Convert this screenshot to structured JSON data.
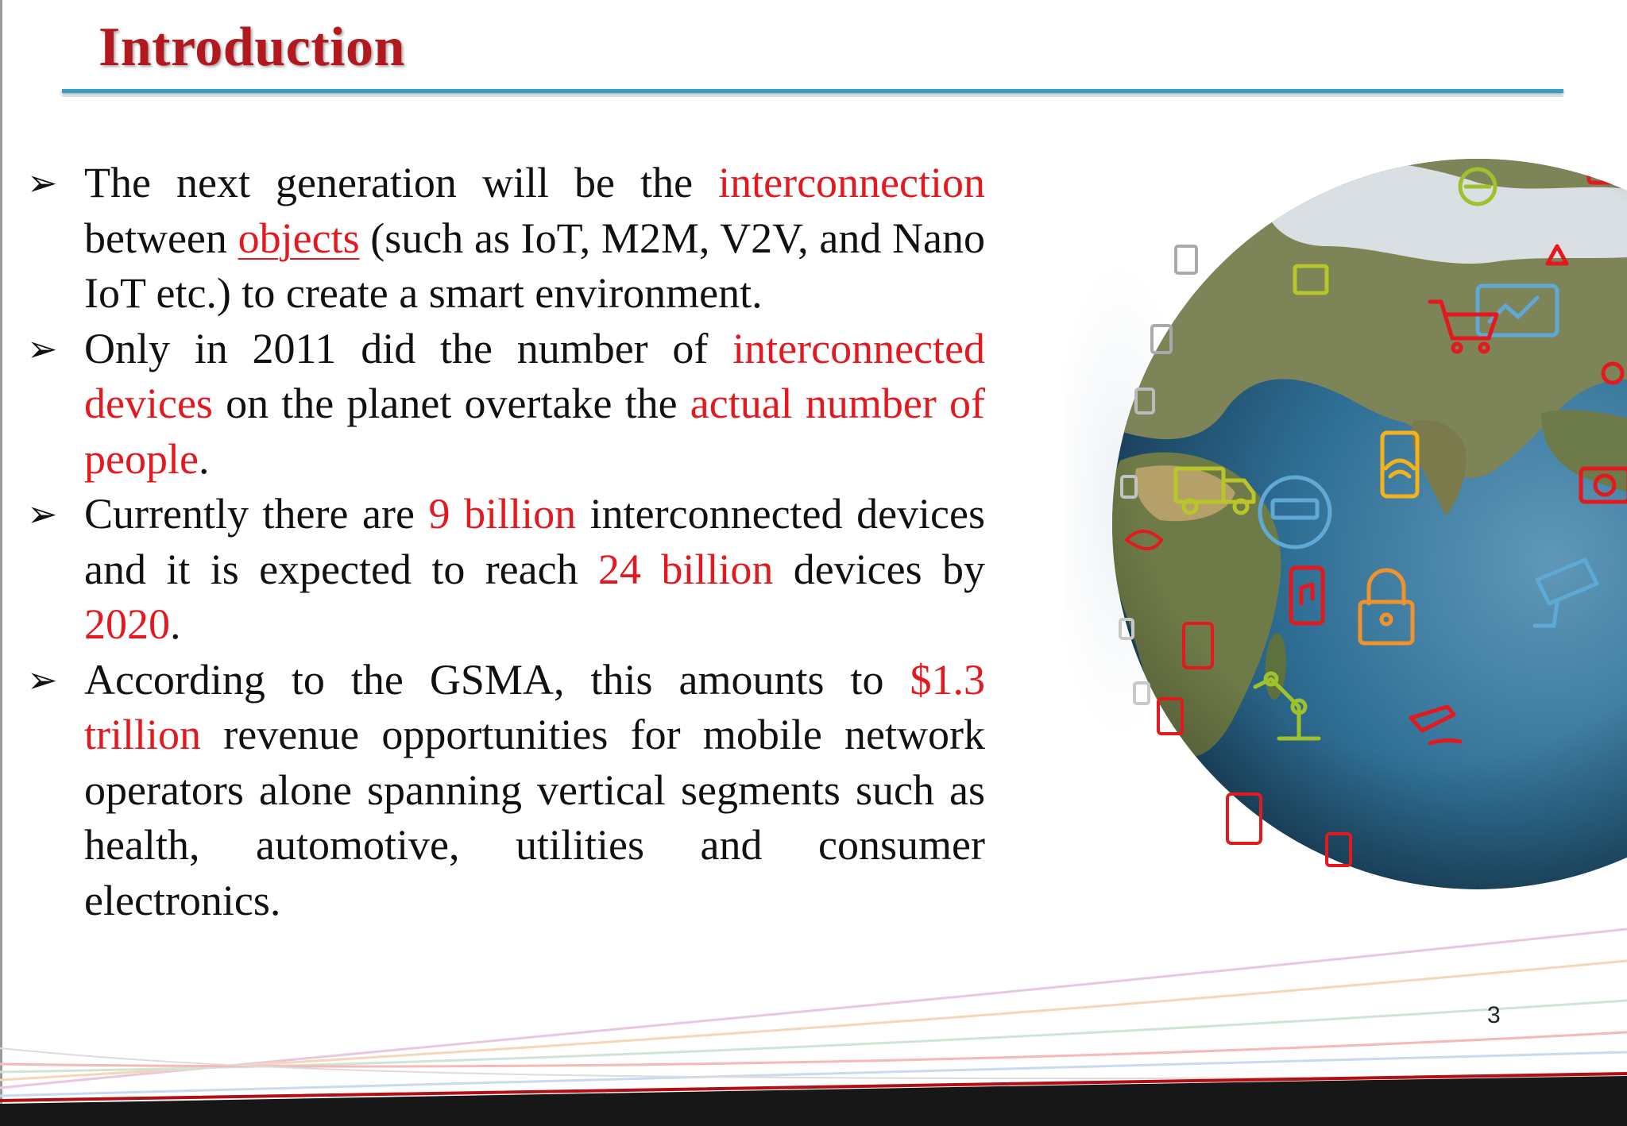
{
  "slide": {
    "title": "Introduction",
    "page_number": "3",
    "accent_color": "#e3191f",
    "title_color": "#b2181e",
    "rule_color": "#3d9dc1",
    "bullet_marker": "➢",
    "bullets": [
      {
        "segments": [
          {
            "text": "The next generation will be the ",
            "style": "normal"
          },
          {
            "text": "interconnection",
            "style": "red"
          },
          {
            "text": " between ",
            "style": "normal"
          },
          {
            "text": "objects",
            "style": "red-underline"
          },
          {
            "text": " (such as IoT, M2M, V2V, and Nano IoT etc.) to create a smart environment.",
            "style": "normal"
          }
        ]
      },
      {
        "segments": [
          {
            "text": "Only in 2011 did the number of ",
            "style": "normal"
          },
          {
            "text": "interconnected devices",
            "style": "red"
          },
          {
            "text": " on the planet overtake the ",
            "style": "normal"
          },
          {
            "text": "actual number of people",
            "style": "red"
          },
          {
            "text": ".",
            "style": "normal"
          }
        ]
      },
      {
        "segments": [
          {
            "text": "Currently there are ",
            "style": "normal"
          },
          {
            "text": "9 billion",
            "style": "red"
          },
          {
            "text": " interconnected devices and it is expected to reach ",
            "style": "normal"
          },
          {
            "text": "24 billion",
            "style": "red"
          },
          {
            "text": " devices by ",
            "style": "normal"
          },
          {
            "text": "2020",
            "style": "red"
          },
          {
            "text": ".",
            "style": "normal"
          }
        ]
      },
      {
        "segments": [
          {
            "text": "According to the GSMA, this amounts to ",
            "style": "normal"
          },
          {
            "text": "$1.3 trillion",
            "style": "red"
          },
          {
            "text": " revenue opportunities for mobile network operators alone spanning vertical segments such as health, automotive, utilities and consumer electronics.",
            "style": "normal"
          }
        ]
      }
    ]
  },
  "globe": {
    "ocean_color": "#2f6f95",
    "land_color": "#7a8a55",
    "icon_names": [
      "wifi-icon",
      "padlock-icon",
      "music-phone-icon",
      "security-camera-icon",
      "truck-icon",
      "robot-arm-icon",
      "meter-icon",
      "handshake-icon",
      "cart-icon",
      "tablet-icon",
      "camera-icon",
      "plane-icon"
    ]
  }
}
